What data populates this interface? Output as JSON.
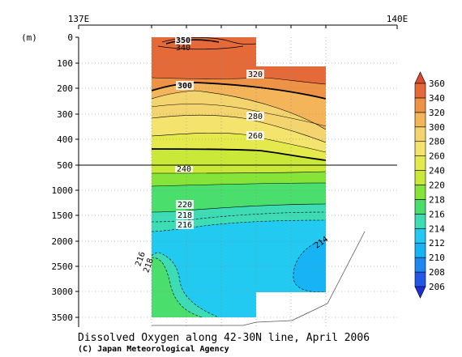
{
  "chart_data": {
    "type": "heatmap",
    "title": "Dissolved Oxygen along 42-30N line, April 2006",
    "credit": "(C) Japan Meteorological Agency",
    "ylabel": "(m)",
    "x_ticks": [
      "137E",
      "140E"
    ],
    "y_ticks_upper": [
      "0",
      "100",
      "200",
      "300",
      "400",
      "500"
    ],
    "y_ticks_lower": [
      "1000",
      "1500",
      "2000",
      "2500",
      "3000",
      "3500"
    ],
    "colorbar": {
      "levels": [
        206,
        208,
        210,
        212,
        214,
        216,
        218,
        220,
        240,
        260,
        280,
        300,
        320,
        340,
        360
      ],
      "colors": [
        "#1c2fd4",
        "#2358e6",
        "#1f86f2",
        "#18b3f4",
        "#22c9f0",
        "#3ddcb4",
        "#4ade6c",
        "#86e33a",
        "#c9e838",
        "#e5ea4c",
        "#f4e36c",
        "#f3d46f",
        "#f3b45a",
        "#ee9246",
        "#e56a3a",
        "#dc4a2f"
      ],
      "labels": [
        "206",
        "208",
        "210",
        "212",
        "214",
        "216",
        "218",
        "220",
        "240",
        "260",
        "280",
        "300",
        "320",
        "340",
        "360"
      ]
    },
    "contour_labels": [
      "350",
      "340",
      "320",
      "300",
      "280",
      "260",
      "240",
      "220",
      "218",
      "216",
      "216",
      "218",
      "214"
    ],
    "upper_depth_range": [
      0,
      500
    ],
    "lower_depth_range": [
      500,
      3750
    ],
    "grid": "dotted"
  }
}
